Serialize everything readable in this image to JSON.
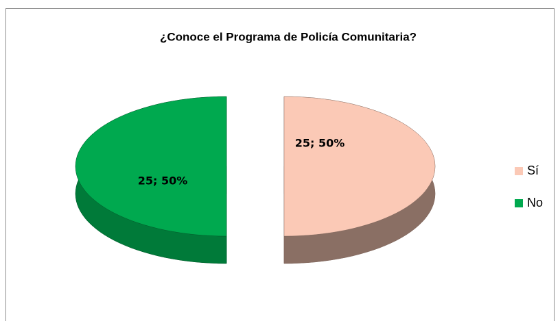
{
  "chart_data": {
    "type": "pie",
    "title": "¿Conoce el Programa de Policía Comunitaria?",
    "categories": [
      "Sí",
      "No"
    ],
    "values": [
      25,
      25
    ],
    "value_labels": [
      "25; 50%",
      "25; 50%"
    ],
    "colors": [
      "#fbc9b6",
      "#00a94f"
    ],
    "legend": "right"
  }
}
